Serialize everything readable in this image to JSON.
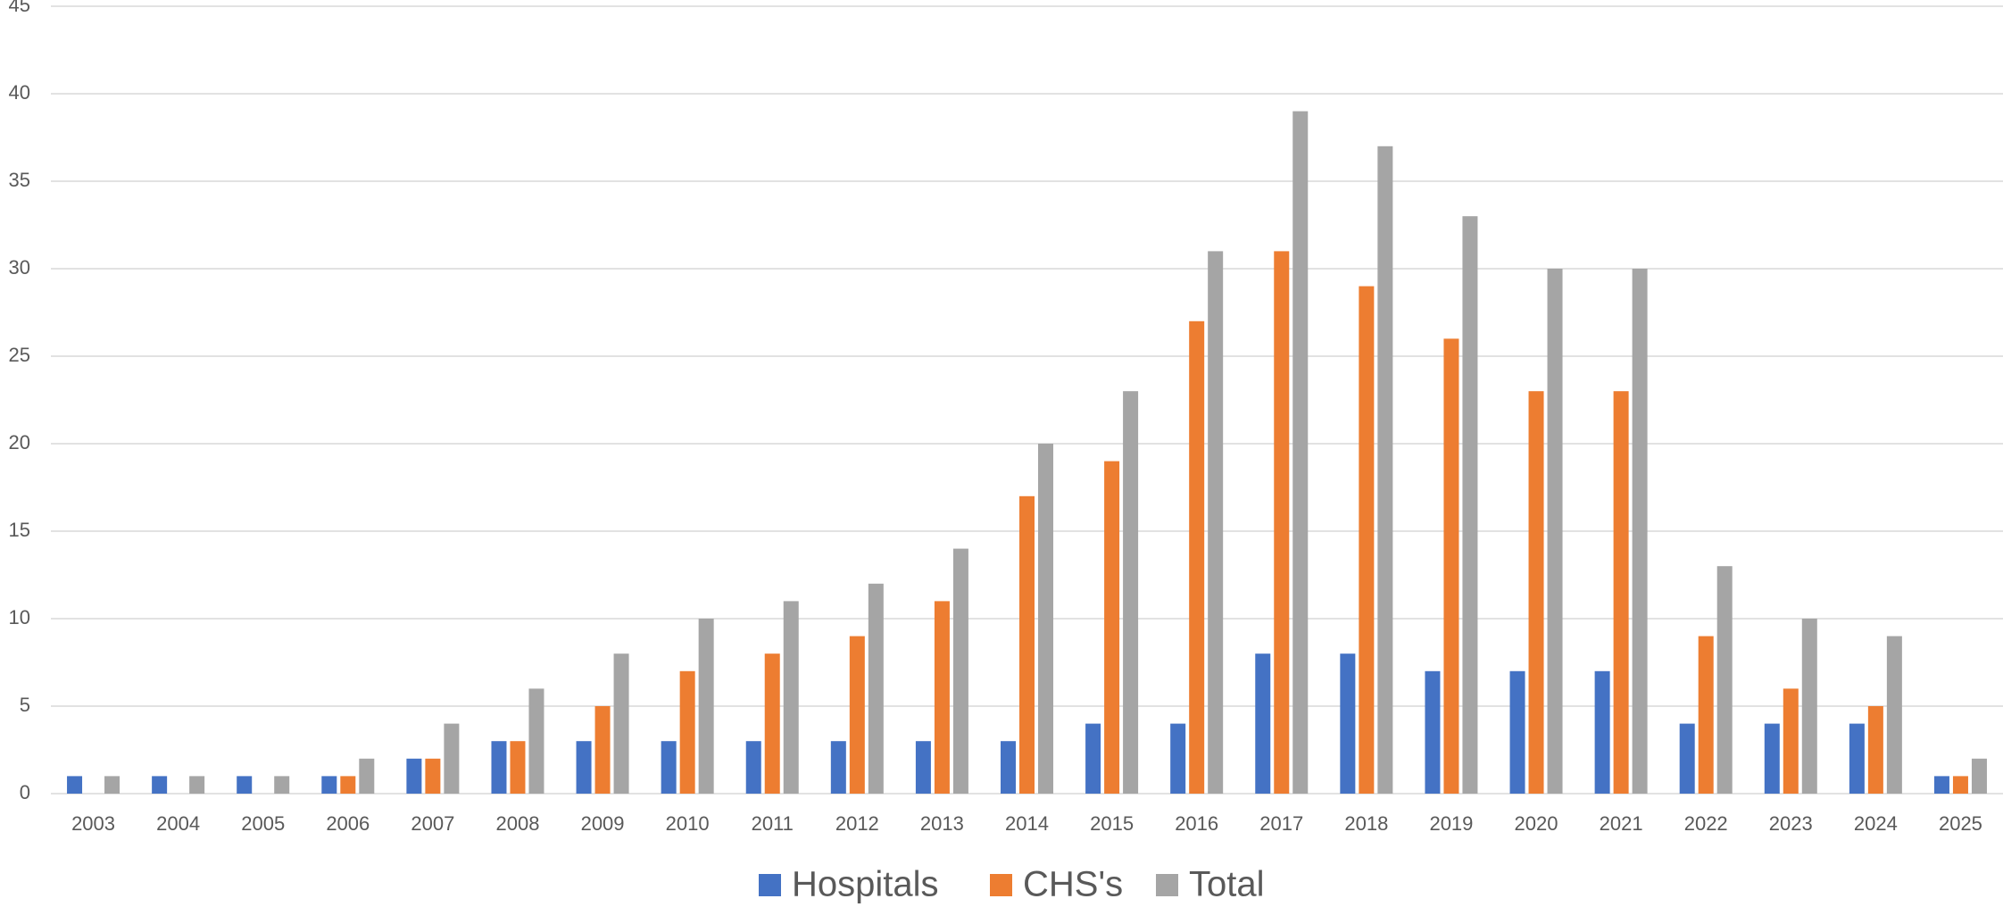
{
  "chart_data": {
    "type": "bar",
    "categories": [
      "2003",
      "2004",
      "2005",
      "2006",
      "2007",
      "2008",
      "2009",
      "2010",
      "2011",
      "2012",
      "2013",
      "2014",
      "2015",
      "2016",
      "2017",
      "2018",
      "2019",
      "2020",
      "2021",
      "2022",
      "2023",
      "2024",
      "2025"
    ],
    "series": [
      {
        "name": "Hospitals",
        "color": "#4472c4",
        "values": [
          1,
          1,
          1,
          1,
          2,
          3,
          3,
          3,
          3,
          3,
          3,
          3,
          4,
          4,
          8,
          8,
          7,
          7,
          7,
          4,
          4,
          4,
          1
        ]
      },
      {
        "name": "CHS's",
        "color": "#ed7d31",
        "values": [
          0,
          0,
          0,
          1,
          2,
          3,
          5,
          7,
          8,
          9,
          11,
          17,
          19,
          27,
          31,
          29,
          26,
          23,
          23,
          9,
          6,
          5,
          1
        ]
      },
      {
        "name": "Total",
        "color": "#a5a5a5",
        "values": [
          1,
          1,
          1,
          2,
          4,
          6,
          8,
          10,
          11,
          12,
          14,
          20,
          23,
          31,
          39,
          37,
          33,
          30,
          30,
          13,
          10,
          9,
          2
        ]
      }
    ],
    "ylim": [
      0,
      45
    ],
    "yticks": [
      0,
      5,
      10,
      15,
      20,
      25,
      30,
      35,
      40,
      45
    ],
    "grid": true,
    "legend": "bottom"
  }
}
